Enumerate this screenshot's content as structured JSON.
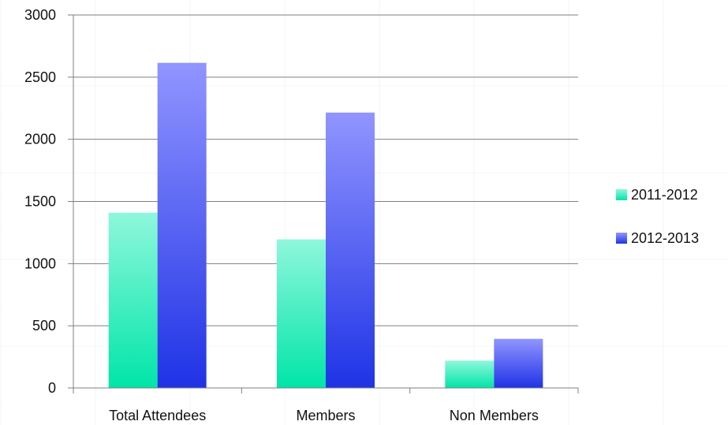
{
  "chart_data": {
    "type": "bar",
    "categories": [
      "Total Attendees",
      "Members",
      "Non Members"
    ],
    "series": [
      {
        "name": "2011-2012",
        "values": [
          1410,
          1195,
          220
        ],
        "color_top": "#8ff7dc",
        "color_bottom": "#00e5a8"
      },
      {
        "name": "2012-2013",
        "values": [
          2615,
          2215,
          395
        ],
        "color_top": "#9195ff",
        "color_bottom": "#1f33e6"
      }
    ],
    "yticks": [
      0,
      500,
      1000,
      1500,
      2000,
      2500,
      3000
    ],
    "ylim": [
      0,
      3000
    ],
    "grid": true,
    "legend": "right",
    "title": "",
    "xlabel": "",
    "ylabel": ""
  }
}
